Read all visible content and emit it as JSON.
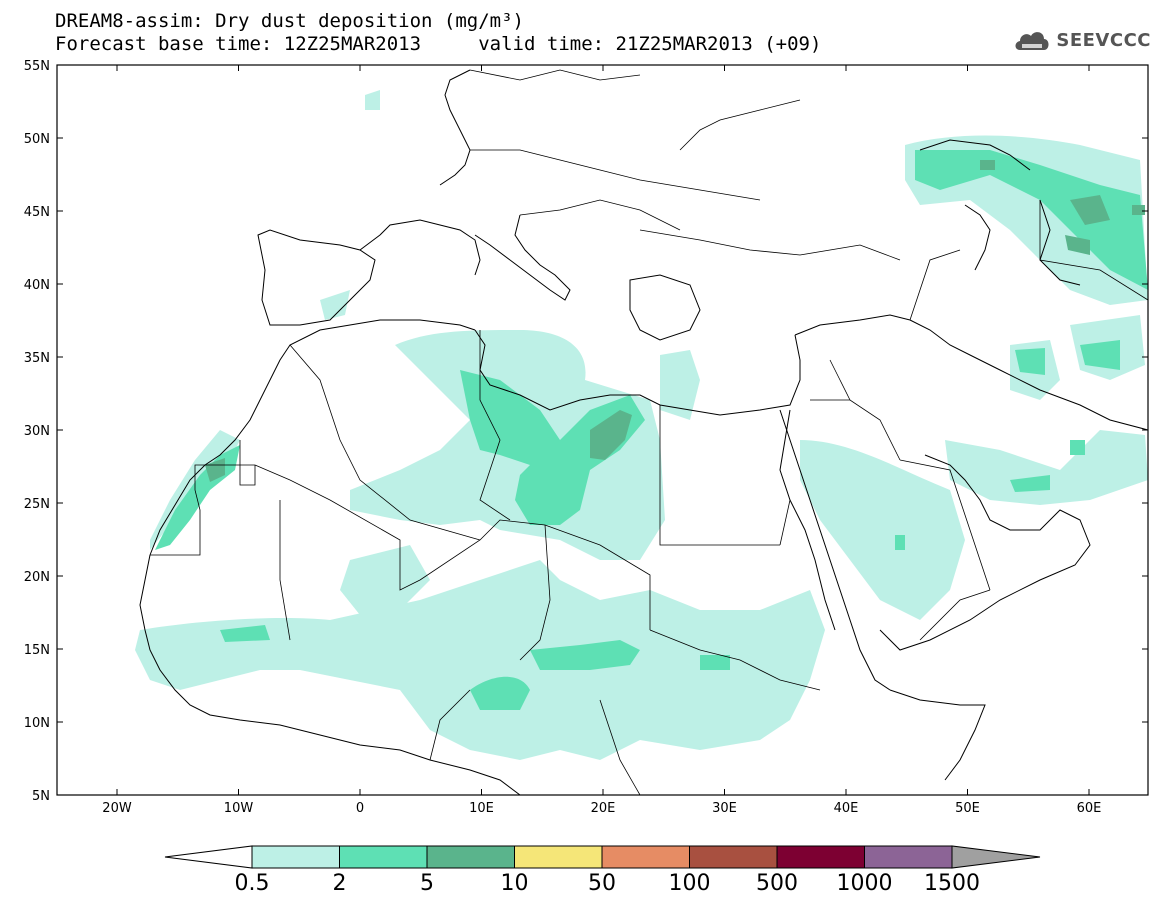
{
  "header": {
    "title_line1": "DREAM8-assim: Dry dust deposition (mg/m³)",
    "title_line2": "Forecast base time: 12Z25MAR2013     valid time: 21Z25MAR2013 (+09)",
    "logo_text": "SEEVCCC"
  },
  "map": {
    "lon_ticks": [
      "20W",
      "10W",
      "0",
      "10E",
      "20E",
      "30E",
      "40E",
      "50E",
      "60E"
    ],
    "lat_ticks": [
      "55N",
      "50N",
      "45N",
      "40N",
      "35N",
      "30N",
      "25N",
      "20N",
      "15N",
      "10N",
      "5N"
    ]
  },
  "colorbar": {
    "labels": [
      "0.5",
      "2",
      "5",
      "10",
      "50",
      "100",
      "500",
      "1000",
      "1500"
    ],
    "colors": [
      "#bdf0e6",
      "#5ee0b4",
      "#5ab48c",
      "#f5e678",
      "#e68c64",
      "#a85040",
      "#7d0032",
      "#8c6496",
      "#a0a0a0"
    ]
  }
}
